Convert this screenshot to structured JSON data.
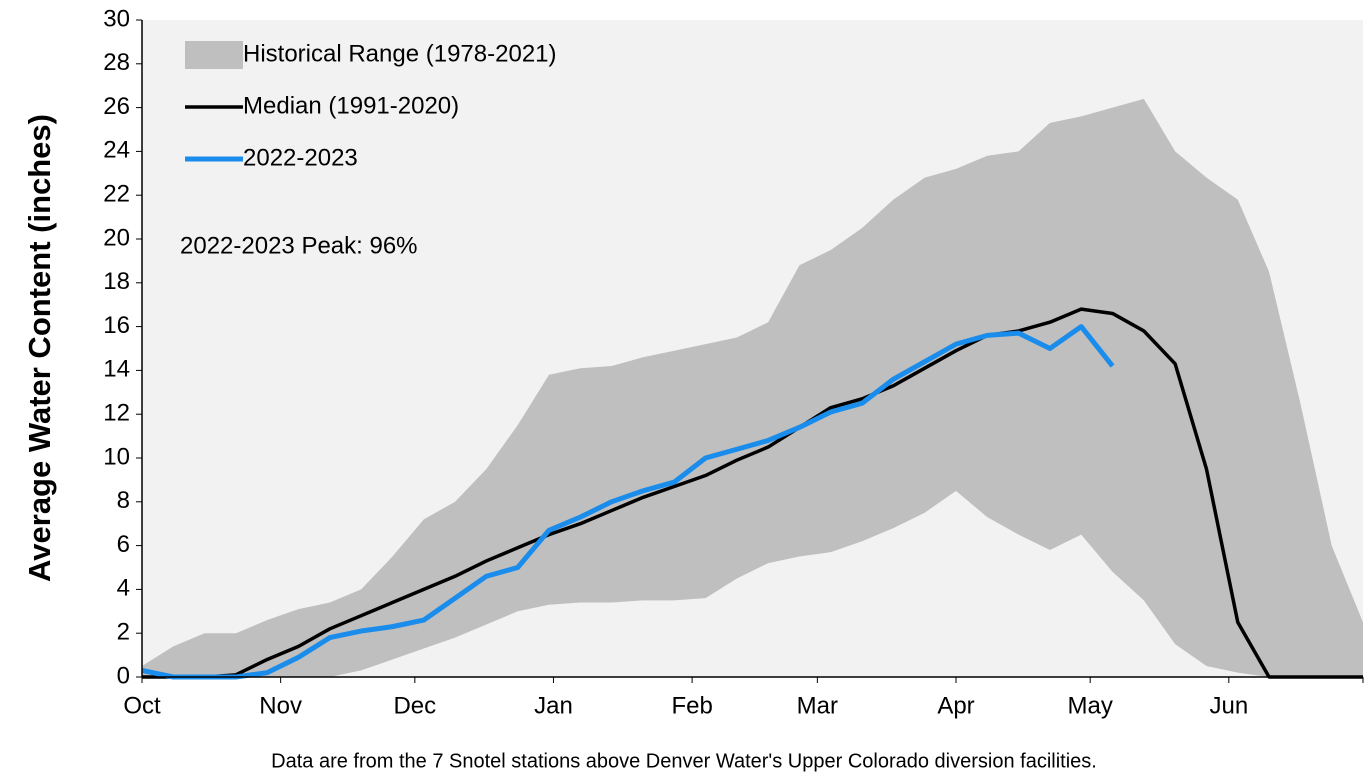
{
  "chart_data": {
    "type": "line",
    "y_label": "Average Water Content (inches)",
    "annotation": "2022-2023 Peak: 96%",
    "footnote": "Data are from the 7 Snotel stations above Denver Water's Upper Colorado diversion facilities.",
    "x": [
      0,
      7,
      14,
      21,
      28,
      35,
      42,
      49,
      56,
      63,
      70,
      77,
      84,
      91,
      98,
      105,
      112,
      119,
      126,
      133,
      140,
      147,
      154,
      161,
      168,
      175,
      182,
      189,
      196,
      203,
      210,
      217,
      224,
      231,
      238,
      245,
      252,
      259,
      266,
      273
    ],
    "xlim": [
      0,
      273
    ],
    "xticks": [
      {
        "value": 0,
        "label": "Oct"
      },
      {
        "value": 31,
        "label": "Nov"
      },
      {
        "value": 61,
        "label": "Dec"
      },
      {
        "value": 92,
        "label": "Jan"
      },
      {
        "value": 123,
        "label": "Feb"
      },
      {
        "value": 151,
        "label": "Mar"
      },
      {
        "value": 182,
        "label": "Apr"
      },
      {
        "value": 212,
        "label": "May"
      },
      {
        "value": 243,
        "label": "Jun"
      }
    ],
    "ylim": [
      0,
      30
    ],
    "yticks": [
      0,
      2,
      4,
      6,
      8,
      10,
      12,
      14,
      16,
      18,
      20,
      22,
      24,
      26,
      28,
      30
    ],
    "series": [
      {
        "name": "Historical Range (1978-2021)",
        "kind": "band",
        "color": "#bfbfbf",
        "high": [
          0.5,
          1.4,
          2.0,
          2.0,
          2.6,
          3.1,
          3.4,
          4.0,
          5.5,
          7.2,
          8.0,
          9.5,
          11.5,
          13.8,
          14.1,
          14.2,
          14.6,
          14.9,
          15.2,
          15.5,
          16.2,
          18.8,
          19.5,
          20.5,
          21.8,
          22.8,
          23.2,
          23.8,
          24.0,
          25.3,
          25.6,
          26.0,
          26.4,
          24.0,
          22.8,
          21.8,
          18.5,
          12.5,
          6.0,
          2.5
        ],
        "low": [
          0,
          0,
          0,
          0,
          0,
          0,
          0,
          0.3,
          0.8,
          1.3,
          1.8,
          2.4,
          3.0,
          3.3,
          3.4,
          3.4,
          3.5,
          3.5,
          3.6,
          4.5,
          5.2,
          5.5,
          5.7,
          6.2,
          6.8,
          7.5,
          8.5,
          7.3,
          6.5,
          5.8,
          6.5,
          4.8,
          3.5,
          1.5,
          0.5,
          0.2,
          0,
          0,
          0,
          0
        ]
      },
      {
        "name": "Median (1991-2020)",
        "kind": "line",
        "color": "#000000",
        "values": [
          0,
          0,
          0,
          0.1,
          0.8,
          1.4,
          2.2,
          2.8,
          3.4,
          4.0,
          4.6,
          5.3,
          5.9,
          6.5,
          7.0,
          7.6,
          8.2,
          8.7,
          9.2,
          9.9,
          10.5,
          11.4,
          12.3,
          12.7,
          13.3,
          14.1,
          14.9,
          15.6,
          15.8,
          16.2,
          16.8,
          16.6,
          15.8,
          14.3,
          9.5,
          2.5,
          0,
          0,
          0,
          0
        ]
      },
      {
        "name": "2022-2023",
        "kind": "line",
        "color": "#1a8cec",
        "values": [
          0.3,
          0,
          0,
          0,
          0.2,
          0.9,
          1.8,
          2.1,
          2.3,
          2.6,
          3.6,
          4.6,
          5.0,
          6.7,
          7.3,
          8.0,
          8.5,
          8.9,
          10.0,
          10.4,
          10.8,
          11.4,
          12.1,
          12.5,
          13.6,
          14.4,
          15.2,
          15.6,
          15.7,
          15.0,
          16.0,
          14.2,
          null,
          null,
          null,
          null,
          null,
          null,
          null,
          null
        ]
      }
    ]
  }
}
